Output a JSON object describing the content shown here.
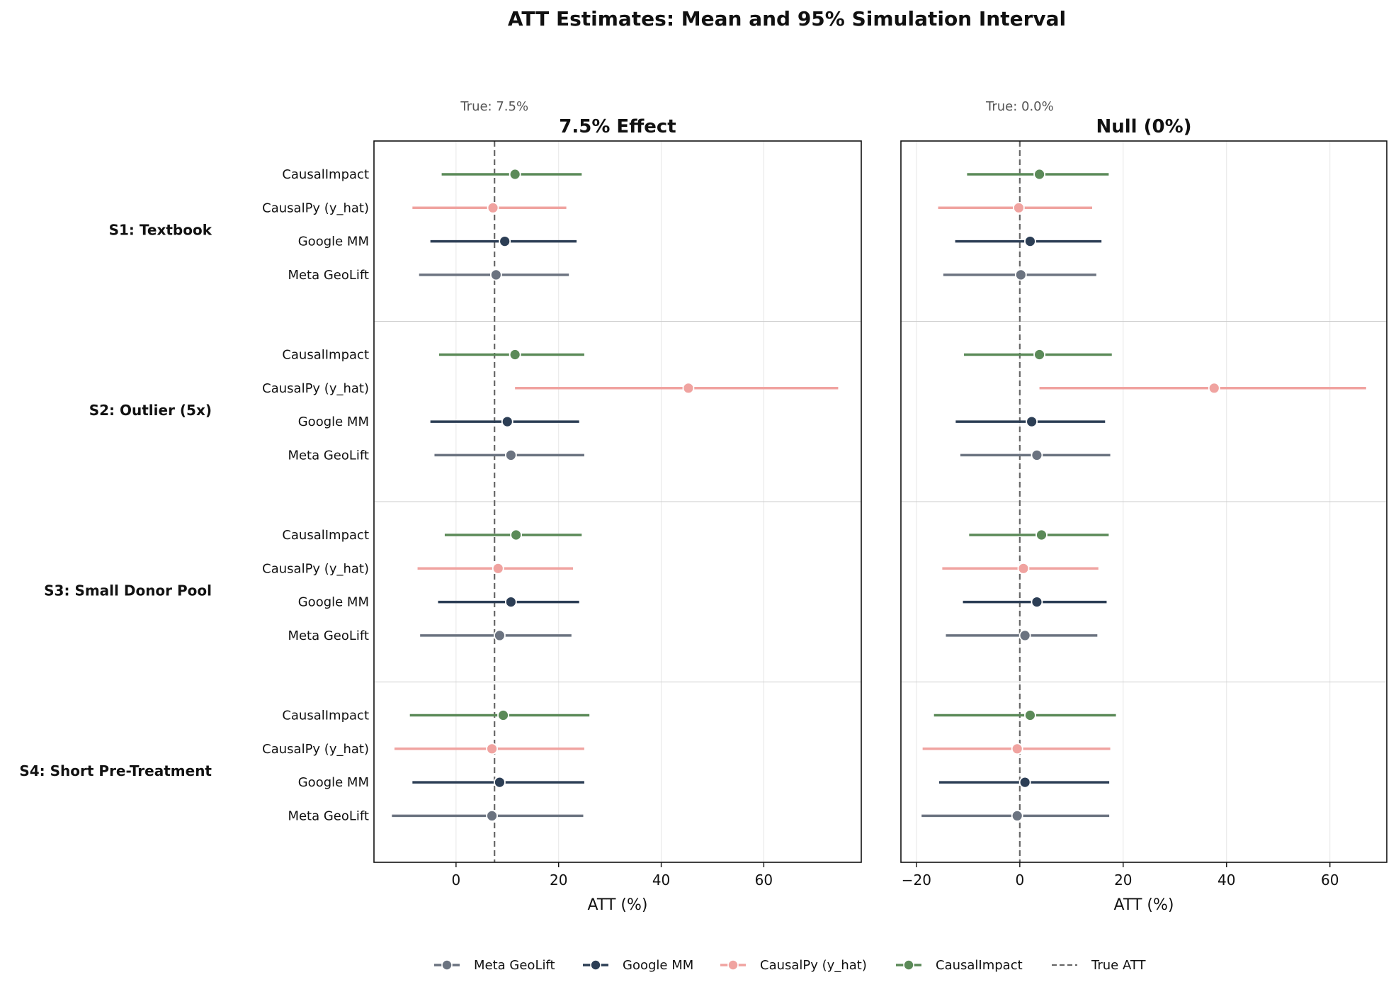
{
  "chart_data": {
    "type": "scatter",
    "title": "ATT Estimates: Mean and 95% Simulation Interval",
    "methods": [
      {
        "name": "CausalImpact",
        "color": "#5b8a58"
      },
      {
        "name": "CausalPy (y_hat)",
        "color": "#f0a3a0"
      },
      {
        "name": "Google MM",
        "color": "#2c3e55"
      },
      {
        "name": "Meta GeoLift",
        "color": "#6b7380"
      }
    ],
    "scenarios": [
      "S1: Textbook",
      "S2: Outlier (5x)",
      "S3: Small Donor Pool",
      "S4: Short Pre-Treatment"
    ],
    "xlabel": "ATT (%)",
    "grid": true,
    "legend_position": "bottom-center",
    "legend": [
      {
        "label": "Meta GeoLift",
        "color": "#6b7380",
        "kind": "marker-line"
      },
      {
        "label": "Google MM",
        "color": "#2c3e55",
        "kind": "marker-line"
      },
      {
        "label": "CausalPy (y_hat)",
        "color": "#f0a3a0",
        "kind": "marker-line"
      },
      {
        "label": "CausalImpact",
        "color": "#5b8a58",
        "kind": "marker-line"
      },
      {
        "label": "True ATT",
        "color": "#666666",
        "kind": "dashed"
      }
    ],
    "panels": [
      {
        "title": "7.5% Effect",
        "true_label": "True: 7.5%",
        "true_att": 7.5,
        "xlim": [
          -16,
          79
        ],
        "xticks": [
          0,
          20,
          40,
          60
        ],
        "tick_labels": [
          "0",
          "20",
          "40",
          "60"
        ],
        "estimates": [
          [
            [
              11.5,
              -2.8,
              24.5
            ],
            [
              7.2,
              -8.5,
              21.5
            ],
            [
              9.5,
              -5.0,
              23.5
            ],
            [
              7.8,
              -7.2,
              22.0
            ]
          ],
          [
            [
              11.5,
              -3.3,
              25.0
            ],
            [
              45.3,
              11.5,
              74.5
            ],
            [
              10.0,
              -5.0,
              24.0
            ],
            [
              10.7,
              -4.2,
              25.0
            ]
          ],
          [
            [
              11.7,
              -2.2,
              24.5
            ],
            [
              8.2,
              -7.5,
              22.8
            ],
            [
              10.7,
              -3.5,
              24.0
            ],
            [
              8.5,
              -7.0,
              22.5
            ]
          ],
          [
            [
              9.2,
              -9.0,
              26.0
            ],
            [
              7.0,
              -12.0,
              25.0
            ],
            [
              8.5,
              -8.5,
              25.0
            ],
            [
              7.0,
              -12.5,
              24.8
            ]
          ]
        ]
      },
      {
        "title": "Null (0%)",
        "true_label": "True: 0.0%",
        "true_att": 0.0,
        "xlim": [
          -23,
          71
        ],
        "xticks": [
          -20,
          0,
          20,
          40,
          60
        ],
        "tick_labels": [
          "−20",
          "0",
          "20",
          "40",
          "60"
        ],
        "estimates": [
          [
            [
              3.8,
              -10.2,
              17.2
            ],
            [
              -0.2,
              -15.8,
              14.0
            ],
            [
              2.0,
              -12.5,
              15.8
            ],
            [
              0.2,
              -14.8,
              14.8
            ]
          ],
          [
            [
              3.8,
              -10.8,
              17.8
            ],
            [
              37.6,
              3.8,
              67.0
            ],
            [
              2.3,
              -12.4,
              16.5
            ],
            [
              3.3,
              -11.5,
              17.5
            ]
          ],
          [
            [
              4.2,
              -9.8,
              17.2
            ],
            [
              0.7,
              -15.0,
              15.2
            ],
            [
              3.3,
              -11.0,
              16.8
            ],
            [
              1.0,
              -14.3,
              15.0
            ]
          ],
          [
            [
              2.0,
              -16.6,
              18.6
            ],
            [
              -0.5,
              -18.8,
              17.5
            ],
            [
              1.0,
              -15.6,
              17.3
            ],
            [
              -0.5,
              -19.0,
              17.3
            ]
          ]
        ]
      }
    ]
  }
}
